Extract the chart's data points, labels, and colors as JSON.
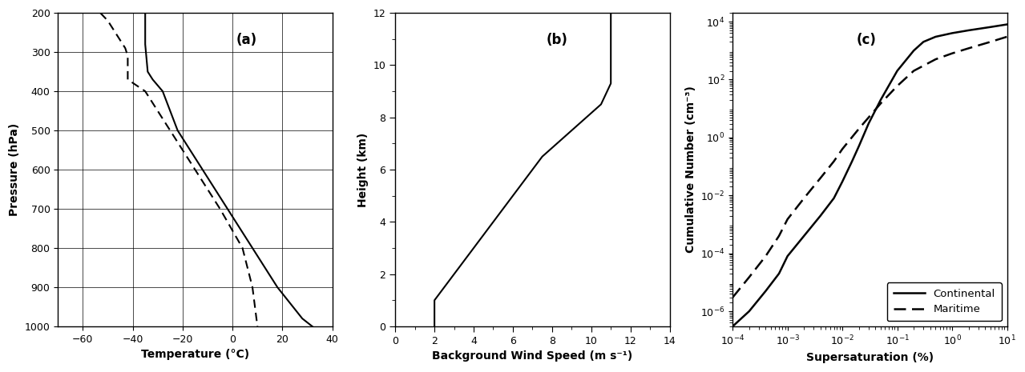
{
  "panel_a": {
    "label": "(a)",
    "temp_solid_T": [
      -35,
      -35,
      -35,
      -34,
      -32,
      -28,
      -22,
      -12,
      -2,
      8,
      18,
      28,
      32
    ],
    "temp_solid_P": [
      200,
      210,
      280,
      350,
      370,
      400,
      500,
      600,
      700,
      800,
      900,
      980,
      1000
    ],
    "temp_dashed_T": [
      -53,
      -50,
      -47,
      -43,
      -42,
      -42,
      -35,
      -25,
      -15,
      -5,
      4,
      8,
      10
    ],
    "temp_dashed_P": [
      200,
      220,
      250,
      290,
      310,
      370,
      400,
      500,
      600,
      700,
      800,
      900,
      1000
    ],
    "xlabel": "Temperature (°C)",
    "ylabel": "Pressure (hPa)",
    "xlim": [
      -70,
      40
    ],
    "xticks": [
      -60,
      -40,
      -20,
      0,
      20,
      40
    ],
    "ylim": [
      1000,
      200
    ],
    "yticks": [
      200,
      300,
      400,
      500,
      600,
      700,
      800,
      900,
      1000
    ]
  },
  "panel_b": {
    "label": "(b)",
    "wind_speed": [
      2.0,
      2.0,
      2.0,
      3.0,
      4.5,
      6.0,
      7.5,
      9.0,
      10.5,
      11.0,
      11.0,
      11.0
    ],
    "height": [
      0.0,
      0.5,
      1.0,
      2.0,
      3.5,
      5.0,
      6.5,
      7.5,
      8.5,
      9.3,
      9.3,
      12.0
    ],
    "xlabel": "Background Wind Speed (m s⁻¹)",
    "ylabel": "Height (km)",
    "xlim": [
      0,
      14
    ],
    "xticks": [
      0,
      2,
      4,
      6,
      8,
      10,
      12,
      14
    ],
    "ylim": [
      0,
      12
    ],
    "yticks": [
      0,
      2,
      4,
      6,
      8,
      10,
      12
    ]
  },
  "panel_c": {
    "label": "(c)",
    "continental_S": [
      0.0001,
      0.0002,
      0.0004,
      0.0007,
      0.001,
      0.002,
      0.004,
      0.007,
      0.01,
      0.015,
      0.02,
      0.03,
      0.05,
      0.1,
      0.2,
      0.3,
      0.5,
      1.0,
      2.0,
      5.0,
      10.0
    ],
    "continental_N": [
      3e-07,
      1e-06,
      5e-06,
      2e-05,
      8e-05,
      0.0004,
      0.002,
      0.008,
      0.03,
      0.15,
      0.5,
      3.0,
      20.0,
      200.0,
      1000.0,
      2000.0,
      3000.0,
      4000.0,
      5000.0,
      6500.0,
      8000.0
    ],
    "maritime_S": [
      0.0001,
      0.0002,
      0.0004,
      0.0007,
      0.001,
      0.002,
      0.004,
      0.007,
      0.01,
      0.02,
      0.05,
      0.1,
      0.2,
      0.5,
      1.0,
      2.0,
      5.0,
      10.0
    ],
    "maritime_N": [
      3e-06,
      1.5e-05,
      8e-05,
      0.0004,
      0.0015,
      0.008,
      0.04,
      0.15,
      0.4,
      2.0,
      15.0,
      60.0,
      200.0,
      500.0,
      800.0,
      1200.0,
      2000.0,
      3000.0
    ],
    "xlabel": "Supersaturation (%)",
    "ylabel": "Cumulative Number (cm⁻³)",
    "xlim": [
      0.0001,
      10
    ],
    "ylim": [
      3e-07,
      20000.0
    ],
    "legend_continental": "Continental",
    "legend_maritime": "Maritime"
  }
}
